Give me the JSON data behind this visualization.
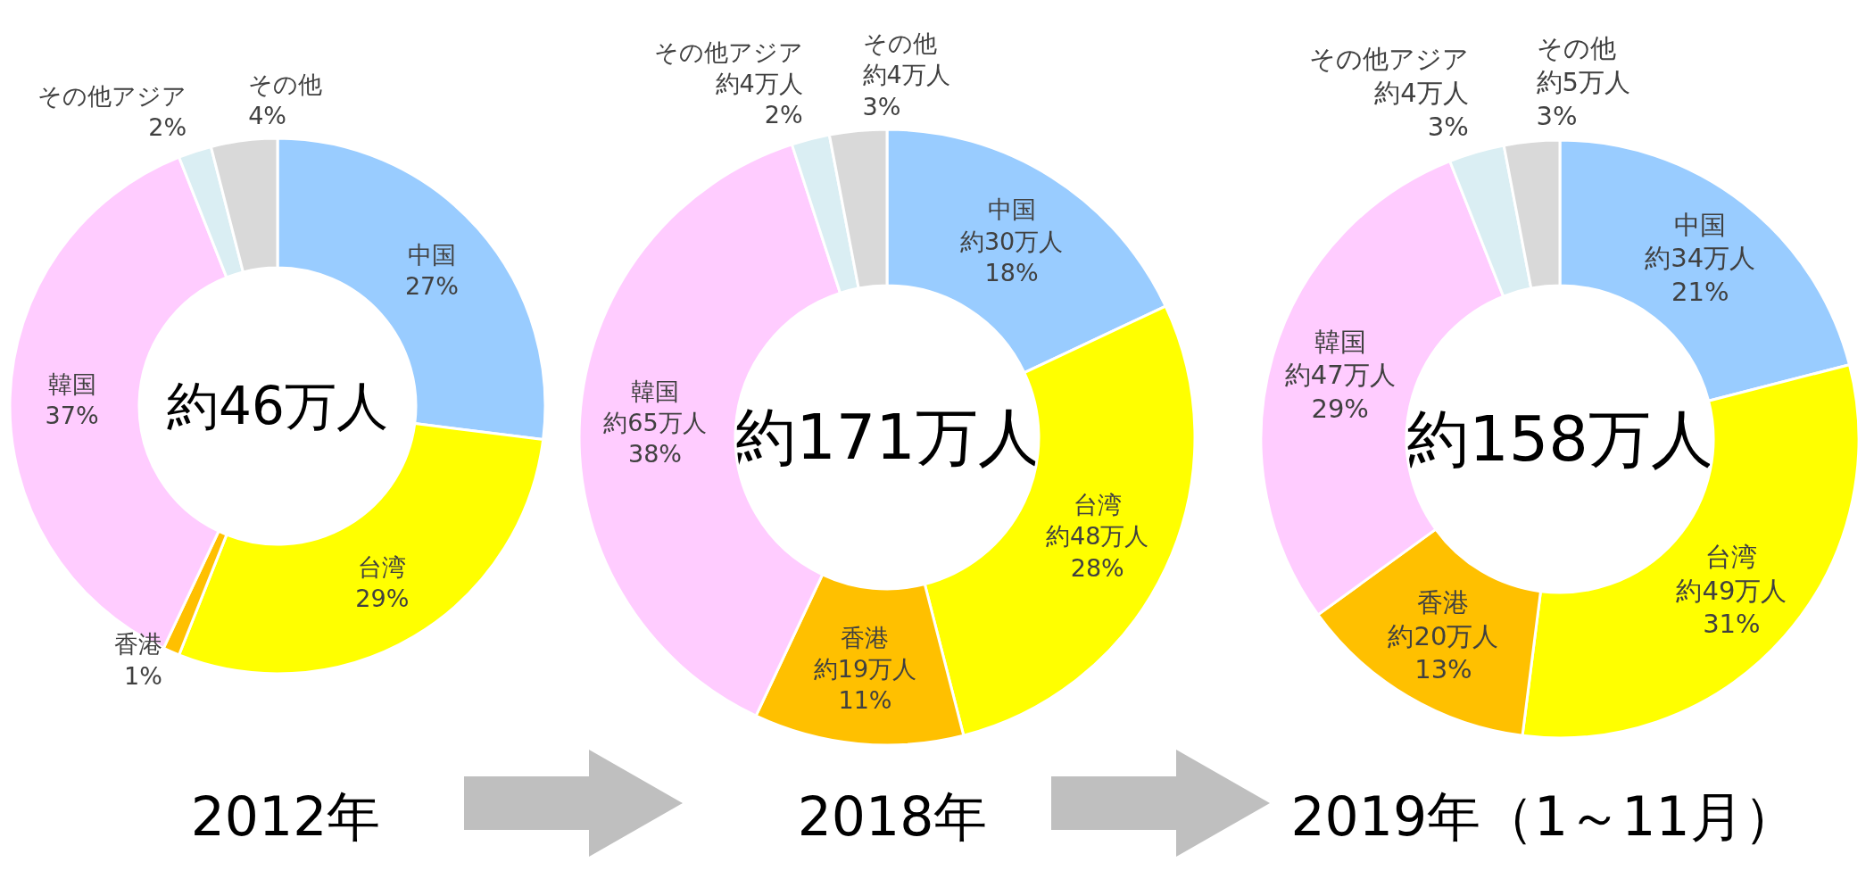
{
  "chart_data": [
    {
      "type": "donut",
      "title": "2012年",
      "annotations": [
        "約46万人"
      ],
      "categories": [
        "中国",
        "台湾",
        "香港",
        "韓国",
        "その他アジア",
        "その他"
      ],
      "values": [
        27,
        29,
        1,
        37,
        2,
        4
      ],
      "value_labels": [
        "27%",
        "29%",
        "1%",
        "37%",
        "2%",
        "4%"
      ],
      "colors": [
        "#99ccff",
        "#ffff00",
        "#ffc000",
        "#ffccff",
        "#daeef3",
        "#d9d9d9"
      ]
    },
    {
      "type": "donut",
      "title": "2018年",
      "annotations": [
        "約171万人"
      ],
      "categories": [
        "中国",
        "台湾",
        "香港",
        "韓国",
        "その他アジア",
        "その他"
      ],
      "values": [
        18,
        28,
        11,
        38,
        2,
        3
      ],
      "value_labels": [
        "約30万人\n18%",
        "約48万人\n28%",
        "約19万人\n11%",
        "約65万人\n38%",
        "約4万人\n2%",
        "約4万人\n3%"
      ],
      "colors": [
        "#99ccff",
        "#ffff00",
        "#ffc000",
        "#ffccff",
        "#daeef3",
        "#d9d9d9"
      ]
    },
    {
      "type": "donut",
      "title": "2019年（1～11月）",
      "annotations": [
        "約158万人"
      ],
      "categories": [
        "中国",
        "台湾",
        "香港",
        "韓国",
        "その他アジア",
        "その他"
      ],
      "values": [
        21,
        31,
        13,
        29,
        3,
        3
      ],
      "value_labels": [
        "約34万人\n21%",
        "約49万人\n31%",
        "約20万人\n13%",
        "約47万人\n29%",
        "約4万人\n3%",
        "約5万人\n3%"
      ],
      "colors": [
        "#99ccff",
        "#ffff00",
        "#ffc000",
        "#ffccff",
        "#daeef3",
        "#d9d9d9"
      ]
    }
  ]
}
